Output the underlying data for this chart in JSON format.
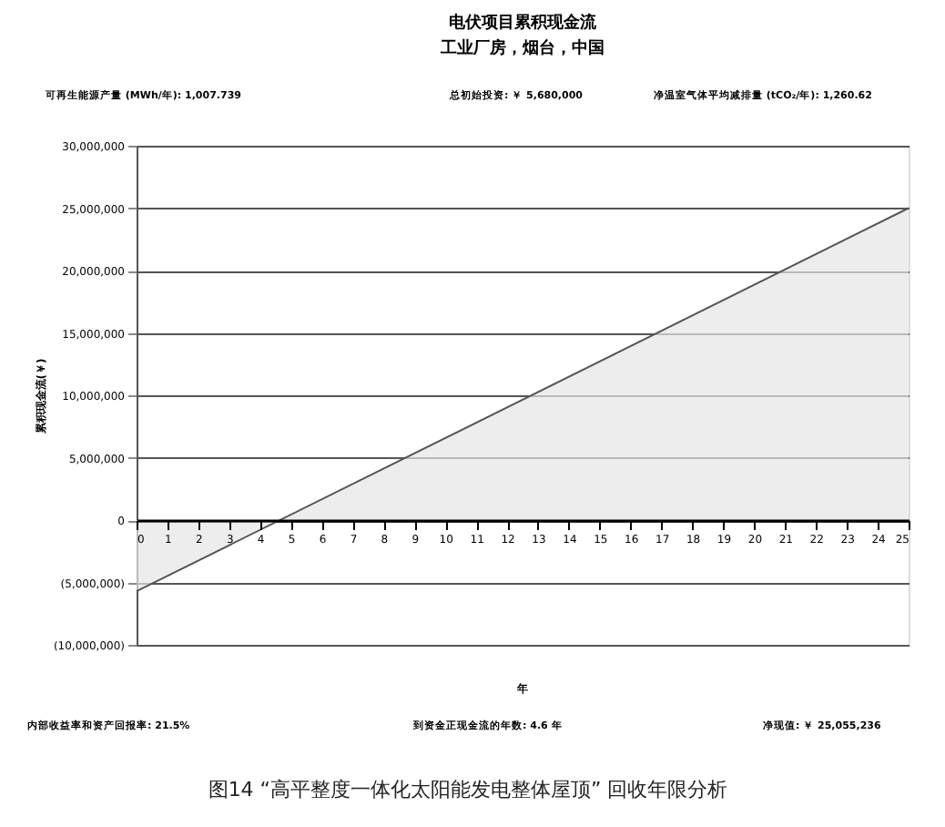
{
  "chart_data": {
    "type": "area",
    "title": "电伏项目累积现金流",
    "subtitle": "工业厂房，烟台，中国",
    "xlabel": "年",
    "ylabel": "累积现金流(￥)",
    "annotations": [
      "可再生能源产量 (MWh/年): 1,007.739",
      "总初始投资:    ￥   5,680,000",
      "净温室气体平均减排量 (tCO₂/年): 1,260.62",
      "内部收益率和资产回报率: 21.5%",
      "到资金正现金流的年数: 4.6 年",
      "净现值: ￥ 25,055,236",
      "图14 “高平整度一体化太阳能发电整体屋顶” 回收年限分析"
    ],
    "x": [
      0,
      25
    ],
    "series": [
      {
        "color": "#e6e6e6",
        "values": [
          -5700000,
          25000000
        ]
      }
    ],
    "xlim": [
      0,
      25
    ],
    "xticks": [
      0,
      1,
      2,
      3,
      4,
      5,
      6,
      7,
      8,
      9,
      10,
      11,
      12,
      13,
      14,
      15,
      16,
      17,
      18,
      19,
      20,
      21,
      22,
      23,
      24,
      25
    ],
    "ylim": [
      -10000000,
      30000000
    ],
    "yticks": [
      {
        "value": -10000000,
        "label": "(10,000,000)"
      },
      {
        "value": -5000000,
        "label": "(5,000,000)"
      },
      {
        "value": 0,
        "label": "0"
      },
      {
        "value": 5000000,
        "label": "5,000,000"
      },
      {
        "value": 10000000,
        "label": "10,000,000"
      },
      {
        "value": 15000000,
        "label": "15,000,000"
      },
      {
        "value": 20000000,
        "label": "20,000,000"
      },
      {
        "value": 25000000,
        "label": "25,000,000"
      },
      {
        "value": 30000000,
        "label": "30,000,000"
      }
    ],
    "grid": "y"
  }
}
